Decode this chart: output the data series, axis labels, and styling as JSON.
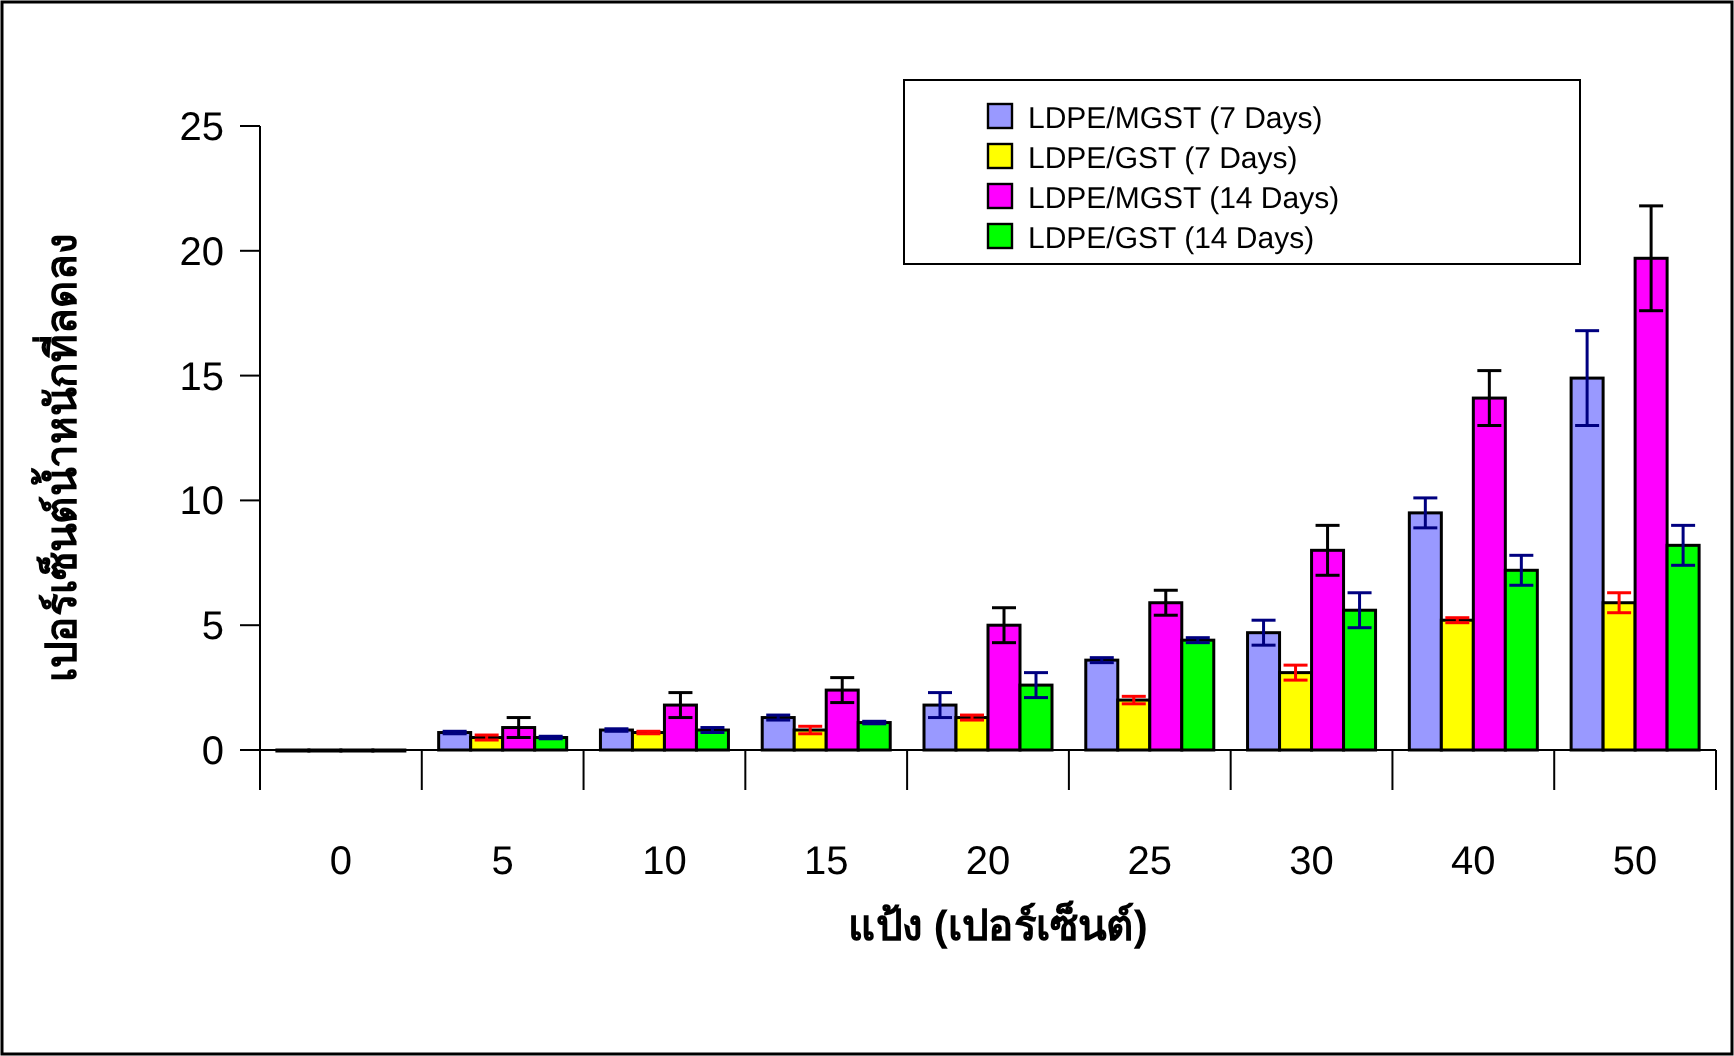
{
  "chart_data": {
    "type": "bar",
    "xlabel": "แป้ง (เปอร์เซ็นต์)",
    "ylabel": "เปอร์เซ็นต์น้ำหนักที่ลดลง",
    "categories": [
      "0",
      "5",
      "10",
      "15",
      "20",
      "25",
      "30",
      "40",
      "50"
    ],
    "series": [
      {
        "name": "LDPE/MGST (7 Days)",
        "color": "#9999ff",
        "values": [
          0,
          0.7,
          0.8,
          1.3,
          1.8,
          3.6,
          4.7,
          9.5,
          14.9
        ],
        "errors": [
          null,
          0.05,
          0.05,
          0.1,
          0.5,
          0.1,
          0.5,
          0.6,
          1.9
        ]
      },
      {
        "name": "LDPE/GST (7 Days)",
        "color": "#ffff00",
        "values": [
          0,
          0.5,
          0.7,
          0.8,
          1.3,
          2.0,
          3.1,
          5.2,
          5.9
        ],
        "errors": [
          null,
          0.1,
          0.05,
          0.15,
          0.1,
          0.15,
          0.3,
          0.1,
          0.4
        ]
      },
      {
        "name": "LDPE/MGST (14 Days)",
        "color": "#ff00ff",
        "values": [
          0,
          0.9,
          1.8,
          2.4,
          5.0,
          5.9,
          8.0,
          14.1,
          19.7
        ],
        "errors": [
          null,
          0.4,
          0.5,
          0.5,
          0.7,
          0.5,
          1.0,
          1.1,
          2.1
        ]
      },
      {
        "name": "LDPE/GST (14 Days)",
        "color": "#00ff00",
        "values": [
          0,
          0.5,
          0.8,
          1.1,
          2.6,
          4.4,
          5.6,
          7.2,
          8.2
        ],
        "errors": [
          null,
          0.05,
          0.1,
          0.05,
          0.5,
          0.1,
          0.7,
          0.6,
          0.8
        ]
      }
    ],
    "ylim": [
      0,
      25
    ],
    "yticks": [
      0,
      5,
      10,
      15,
      20,
      25
    ],
    "legend": "top right"
  }
}
